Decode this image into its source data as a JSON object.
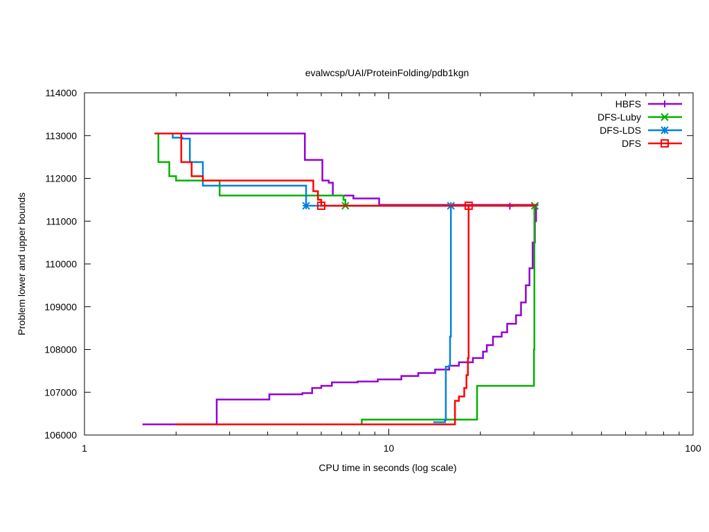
{
  "chart_data": {
    "type": "line",
    "title": "evalwcsp/UAI/ProteinFolding/pdb1kgn",
    "xlabel": "CPU time in seconds (log scale)",
    "ylabel": "Problem lower and upper bounds",
    "xscale": "log",
    "xlim": [
      1,
      100
    ],
    "ylim": [
      106000,
      114000
    ],
    "xticks": [
      1,
      10,
      100
    ],
    "xtick_labels": [
      "1",
      "10",
      "100"
    ],
    "yticks": [
      106000,
      107000,
      108000,
      109000,
      110000,
      111000,
      112000,
      113000,
      114000
    ],
    "ytick_labels": [
      "106000",
      "107000",
      "108000",
      "109000",
      "110000",
      "111000",
      "112000",
      "113000",
      "114000"
    ],
    "grid": false,
    "legend_position": "top-right",
    "series": [
      {
        "name": "HBFS",
        "color": "#9400d3",
        "marker": "plus",
        "markers": [
          [
            25,
            111350
          ]
        ],
        "upper": [
          [
            1.7,
            113050
          ],
          [
            5.1,
            113050
          ],
          [
            5.3,
            112430
          ],
          [
            5.95,
            112430
          ],
          [
            6.05,
            111950
          ],
          [
            6.35,
            111900
          ],
          [
            6.55,
            111600
          ],
          [
            7.6,
            111600
          ],
          [
            7.65,
            111530
          ],
          [
            9.2,
            111530
          ],
          [
            9.3,
            111380
          ],
          [
            31,
            111380
          ]
        ],
        "lower": [
          [
            1.55,
            106250
          ],
          [
            2.7,
            106250
          ],
          [
            2.72,
            106830
          ],
          [
            4.0,
            106830
          ],
          [
            4.05,
            106950
          ],
          [
            5.2,
            106980
          ],
          [
            5.6,
            107100
          ],
          [
            6.0,
            107150
          ],
          [
            6.5,
            107230
          ],
          [
            7.9,
            107250
          ],
          [
            9.2,
            107300
          ],
          [
            11.0,
            107380
          ],
          [
            12.5,
            107450
          ],
          [
            14.2,
            107530
          ],
          [
            15.8,
            107620
          ],
          [
            17.0,
            107700
          ],
          [
            18.9,
            107800
          ],
          [
            20.4,
            107950
          ],
          [
            21.0,
            108100
          ],
          [
            22.0,
            108300
          ],
          [
            23.5,
            108400
          ],
          [
            24.5,
            108600
          ],
          [
            26.2,
            108800
          ],
          [
            27.2,
            109100
          ],
          [
            28.2,
            109500
          ],
          [
            29.0,
            109900
          ],
          [
            29.7,
            110500
          ],
          [
            30.2,
            111000
          ],
          [
            30.5,
            111380
          ]
        ]
      },
      {
        "name": "DFS-Luby",
        "color": "#00b000",
        "marker": "cross",
        "markers": [
          [
            7.2,
            111360
          ],
          [
            30.2,
            111360
          ]
        ],
        "upper": [
          [
            1.7,
            113050
          ],
          [
            1.75,
            112380
          ],
          [
            1.85,
            112380
          ],
          [
            1.9,
            112050
          ],
          [
            2.0,
            111950
          ],
          [
            2.75,
            111950
          ],
          [
            2.78,
            111600
          ],
          [
            6.95,
            111600
          ],
          [
            7.1,
            111500
          ],
          [
            7.2,
            111360
          ],
          [
            30.3,
            111360
          ]
        ],
        "lower": [
          [
            8.1,
            106250
          ],
          [
            8.15,
            106360
          ],
          [
            19.3,
            106360
          ],
          [
            19.5,
            107150
          ],
          [
            29.9,
            107150
          ],
          [
            30.0,
            108000
          ],
          [
            30.1,
            111360
          ]
        ]
      },
      {
        "name": "DFS-LDS",
        "color": "#0080e0",
        "marker": "star",
        "markers": [
          [
            5.35,
            111360
          ],
          [
            16.0,
            111360
          ]
        ],
        "upper": [
          [
            1.7,
            113050
          ],
          [
            1.9,
            113050
          ],
          [
            1.95,
            112950
          ],
          [
            2.05,
            112950
          ],
          [
            2.1,
            112930
          ],
          [
            2.2,
            112930
          ],
          [
            2.22,
            112380
          ],
          [
            2.4,
            112380
          ],
          [
            2.45,
            111830
          ],
          [
            5.2,
            111830
          ],
          [
            5.35,
            111360
          ],
          [
            16.2,
            111360
          ]
        ],
        "lower": [
          [
            14.0,
            106300
          ],
          [
            15.3,
            106350
          ],
          [
            15.4,
            107600
          ],
          [
            15.8,
            107620
          ],
          [
            15.9,
            108300
          ],
          [
            16.0,
            111360
          ]
        ]
      },
      {
        "name": "DFS",
        "color": "#ff0000",
        "marker": "square",
        "markers": [
          [
            6.0,
            111360
          ],
          [
            18.3,
            111360
          ]
        ],
        "upper": [
          [
            1.7,
            113050
          ],
          [
            2.05,
            113050
          ],
          [
            2.08,
            112380
          ],
          [
            2.2,
            112380
          ],
          [
            2.25,
            112050
          ],
          [
            2.4,
            112050
          ],
          [
            2.45,
            111950
          ],
          [
            5.5,
            111950
          ],
          [
            5.65,
            111700
          ],
          [
            5.85,
            111500
          ],
          [
            6.0,
            111360
          ],
          [
            30.5,
            111360
          ]
        ],
        "lower": [
          [
            2.0,
            106250
          ],
          [
            16.3,
            106250
          ],
          [
            16.5,
            106800
          ],
          [
            17.0,
            106900
          ],
          [
            17.7,
            107100
          ],
          [
            18.0,
            107400
          ],
          [
            18.2,
            107800
          ],
          [
            18.3,
            111360
          ]
        ]
      }
    ]
  }
}
